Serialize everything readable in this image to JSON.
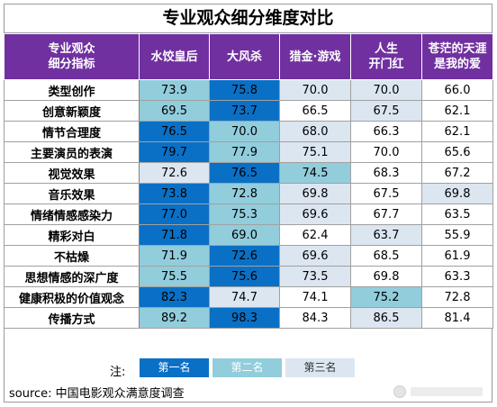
{
  "title": "专业观众细分维度对比",
  "colors": {
    "header_bg": "#7030a0",
    "rank1": "#0a70c6",
    "rank2": "#92cddc",
    "rank3": "#dce6f1",
    "neutral": "#ffffff"
  },
  "chart_data": {
    "type": "table",
    "title": "专业观众细分维度对比",
    "header": {
      "corner": [
        "专业观众",
        "细分指标"
      ],
      "films": [
        [
          "水饺皇后"
        ],
        [
          "大风杀"
        ],
        [
          "猎金·游戏"
        ],
        [
          "人生",
          "开门红"
        ],
        [
          "苍茫的天涯",
          "是我的爱"
        ]
      ]
    },
    "rows": [
      {
        "label": "类型创作",
        "values": [
          "73.9",
          "75.8",
          "70.0",
          "70.0",
          "66.0"
        ],
        "ranks": [
          2,
          1,
          3,
          3,
          0
        ]
      },
      {
        "label": "创意新颖度",
        "values": [
          "69.5",
          "73.7",
          "66.5",
          "67.5",
          "62.1"
        ],
        "ranks": [
          2,
          1,
          0,
          3,
          0
        ]
      },
      {
        "label": "情节合理度",
        "values": [
          "76.5",
          "70.0",
          "68.0",
          "66.3",
          "62.1"
        ],
        "ranks": [
          1,
          2,
          3,
          0,
          0
        ]
      },
      {
        "label": "主要演员的表演",
        "values": [
          "79.7",
          "77.9",
          "75.1",
          "70.0",
          "65.6"
        ],
        "ranks": [
          1,
          2,
          3,
          0,
          0
        ]
      },
      {
        "label": "视觉效果",
        "values": [
          "72.6",
          "76.5",
          "74.5",
          "68.3",
          "67.2"
        ],
        "ranks": [
          3,
          1,
          2,
          0,
          0
        ]
      },
      {
        "label": "音乐效果",
        "values": [
          "73.8",
          "72.8",
          "69.8",
          "67.5",
          "69.8"
        ],
        "ranks": [
          1,
          2,
          3,
          0,
          3
        ]
      },
      {
        "label": "情绪情感感染力",
        "values": [
          "77.0",
          "75.3",
          "69.6",
          "67.7",
          "63.5"
        ],
        "ranks": [
          1,
          2,
          3,
          0,
          0
        ]
      },
      {
        "label": "精彩对白",
        "values": [
          "71.8",
          "69.0",
          "62.4",
          "63.7",
          "55.9"
        ],
        "ranks": [
          1,
          2,
          0,
          3,
          0
        ]
      },
      {
        "label": "不枯燥",
        "values": [
          "71.9",
          "72.6",
          "69.6",
          "68.5",
          "61.9"
        ],
        "ranks": [
          2,
          1,
          3,
          0,
          0
        ]
      },
      {
        "label": "思想情感的深广度",
        "values": [
          "75.5",
          "75.6",
          "73.5",
          "69.8",
          "63.3"
        ],
        "ranks": [
          2,
          1,
          3,
          0,
          0
        ]
      },
      {
        "label": "健康积极的价值观念",
        "values": [
          "82.3",
          "74.7",
          "74.1",
          "75.2",
          "72.8"
        ],
        "ranks": [
          1,
          3,
          0,
          2,
          0
        ]
      },
      {
        "label": "传播方式",
        "values": [
          "89.2",
          "98.3",
          "84.3",
          "86.5",
          "81.4"
        ],
        "ranks": [
          2,
          1,
          0,
          3,
          0
        ]
      }
    ]
  },
  "legend": {
    "note": "注:",
    "items": [
      "第一名",
      "第二名",
      "第三名"
    ]
  },
  "source": "source:  中国电影观众满意度调查"
}
